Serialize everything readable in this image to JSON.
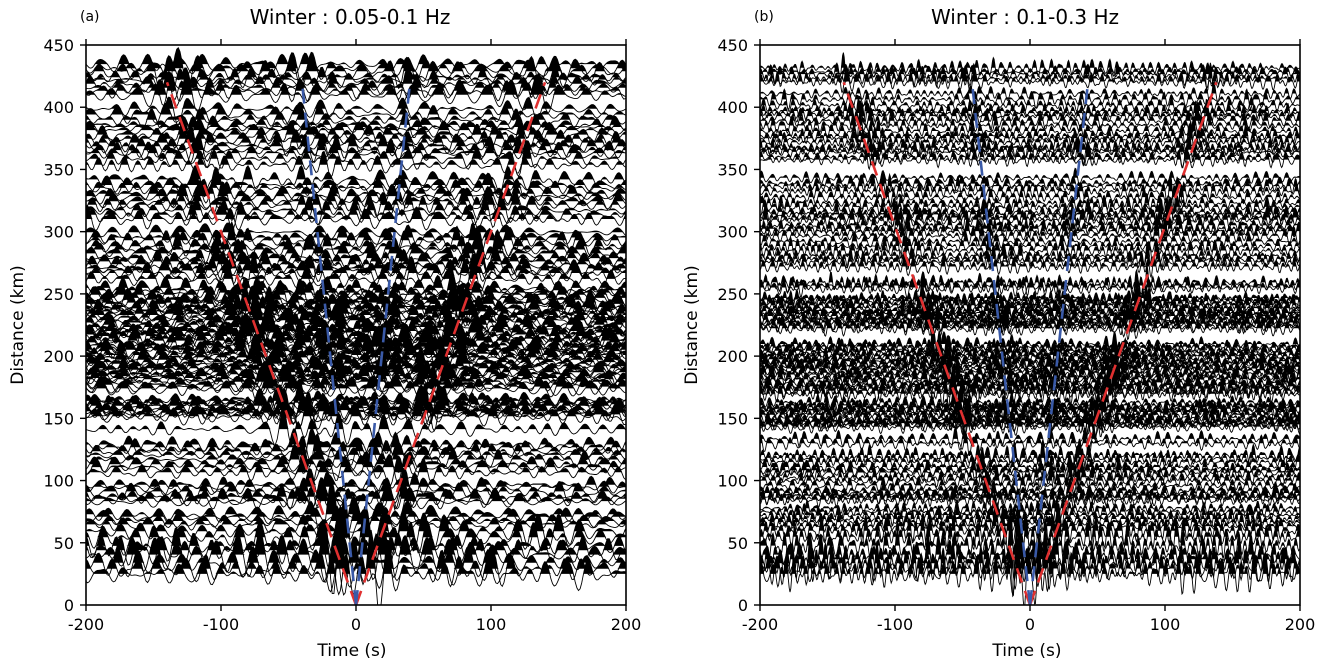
{
  "colors": {
    "trace": "#000000",
    "red_moveout": "#e03030",
    "blue_moveout": "#3a5aa8",
    "frame": "#000000"
  },
  "chart_data": [
    {
      "type": "line",
      "panel_label": "(a)",
      "title": "Winter : 0.05-0.1 Hz",
      "xlabel": "Time (s)",
      "ylabel": "Distance (km)",
      "xlim": [
        -200,
        200
      ],
      "ylim": [
        0,
        450
      ],
      "xticks": [
        "-200",
        "-100",
        "0",
        "100",
        "200"
      ],
      "yticks": [
        "0",
        "50",
        "100",
        "150",
        "200",
        "250",
        "300",
        "350",
        "400",
        "450"
      ],
      "grid": false,
      "trace_distance_range_km": [
        25,
        435
      ],
      "dominant_period_s": 14,
      "series": [
        {
          "color": "red",
          "apparent_velocity_km_s": 3.1,
          "x_at_max_distance_s": [
            -140,
            140
          ],
          "distance_range_km": [
            0,
            420
          ]
        },
        {
          "color": "blue",
          "apparent_velocity_km_s": 10.5,
          "x_at_max_distance_s": [
            -40,
            40
          ],
          "distance_range_km": [
            0,
            420
          ]
        }
      ]
    },
    {
      "type": "line",
      "panel_label": "(b)",
      "title": "Winter : 0.1-0.3 Hz",
      "xlabel": "Time (s)",
      "ylabel": "Distance (km)",
      "xlim": [
        -200,
        200
      ],
      "ylim": [
        0,
        450
      ],
      "xticks": [
        "-200",
        "-100",
        "0",
        "100",
        "200"
      ],
      "yticks": [
        "0",
        "50",
        "100",
        "150",
        "200",
        "250",
        "300",
        "350",
        "400",
        "450"
      ],
      "grid": false,
      "trace_distance_range_km": [
        25,
        435
      ],
      "dominant_period_s": 6,
      "series": [
        {
          "color": "red",
          "apparent_velocity_km_s": 3.1,
          "x_at_max_distance_s": [
            -138,
            138
          ],
          "distance_range_km": [
            0,
            420
          ]
        },
        {
          "color": "blue",
          "apparent_velocity_km_s": 9.8,
          "x_at_max_distance_s": [
            -43,
            43
          ],
          "distance_range_km": [
            0,
            420
          ]
        }
      ]
    }
  ]
}
